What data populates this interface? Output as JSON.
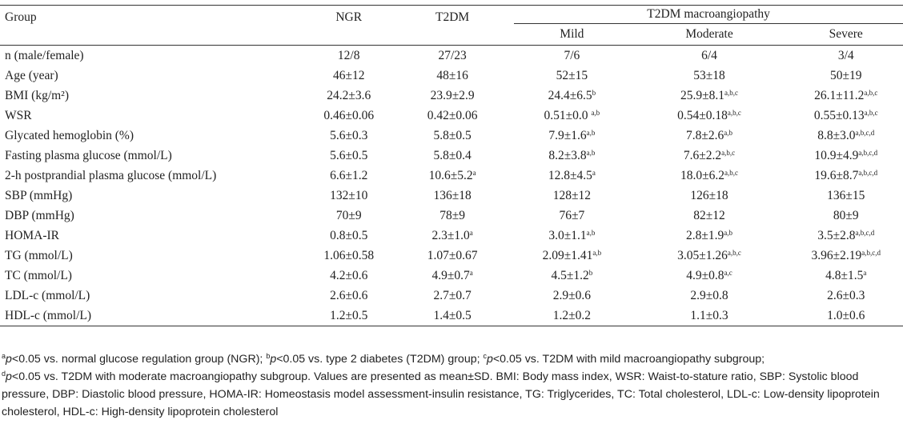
{
  "header": {
    "group": "Group",
    "ngr": "NGR",
    "t2dm": "T2DM",
    "macro": "T2DM macroangiopathy",
    "mild": "Mild",
    "moderate": "Moderate",
    "severe": "Severe"
  },
  "rows": [
    {
      "label": "n (male/female)",
      "cells": [
        [
          "12/8",
          ""
        ],
        [
          "27/23",
          ""
        ],
        [
          "7/6",
          ""
        ],
        [
          "6/4",
          ""
        ],
        [
          "3/4",
          ""
        ]
      ]
    },
    {
      "label": "Age (year)",
      "cells": [
        [
          "46±12",
          ""
        ],
        [
          "48±16",
          ""
        ],
        [
          "52±15",
          ""
        ],
        [
          "53±18",
          ""
        ],
        [
          "50±19",
          ""
        ]
      ]
    },
    {
      "label": "BMI (kg/m²)",
      "cells": [
        [
          "24.2±3.6",
          ""
        ],
        [
          "23.9±2.9",
          ""
        ],
        [
          "24.4±6.5",
          "b"
        ],
        [
          "25.9±8.1",
          "a,b,c"
        ],
        [
          "26.1±11.2",
          "a,b,c"
        ]
      ]
    },
    {
      "label": "WSR",
      "cells": [
        [
          "0.46±0.06",
          ""
        ],
        [
          "0.42±0.06",
          ""
        ],
        [
          "0.51±0.0 ",
          "a,b"
        ],
        [
          "0.54±0.18",
          "a,b,c"
        ],
        [
          "0.55±0.13",
          "a,b,c"
        ]
      ]
    },
    {
      "label": "Glycated hemoglobin (%)",
      "cells": [
        [
          "5.6±0.3",
          ""
        ],
        [
          "5.8±0.5",
          ""
        ],
        [
          "7.9±1.6",
          "a,b"
        ],
        [
          "7.8±2.6",
          "a,b"
        ],
        [
          "8.8±3.0",
          "a,b,c,d"
        ]
      ]
    },
    {
      "label": "Fasting plasma glucose (mmol/L)",
      "cells": [
        [
          "5.6±0.5",
          ""
        ],
        [
          "5.8±0.4",
          ""
        ],
        [
          "8.2±3.8",
          "a,b"
        ],
        [
          "7.6±2.2",
          "a,b,c"
        ],
        [
          "10.9±4.9",
          "a,b,c,d"
        ]
      ]
    },
    {
      "label": "2-h postprandial plasma glucose (mmol/L)",
      "cells": [
        [
          "6.6±1.2",
          ""
        ],
        [
          "10.6±5.2",
          "a"
        ],
        [
          "12.8±4.5",
          "a"
        ],
        [
          "18.0±6.2",
          "a,b,c"
        ],
        [
          "19.6±8.7",
          "a,b,c,d"
        ]
      ]
    },
    {
      "label": "SBP (mmHg)",
      "cells": [
        [
          "132±10",
          ""
        ],
        [
          "136±18",
          ""
        ],
        [
          "128±12",
          ""
        ],
        [
          "126±18",
          ""
        ],
        [
          "136±15",
          ""
        ]
      ]
    },
    {
      "label": "DBP (mmHg)",
      "cells": [
        [
          "70±9",
          ""
        ],
        [
          "78±9",
          ""
        ],
        [
          "76±7",
          ""
        ],
        [
          "82±12",
          ""
        ],
        [
          "80±9",
          ""
        ]
      ]
    },
    {
      "label": "HOMA-IR",
      "cells": [
        [
          "0.8±0.5",
          ""
        ],
        [
          "2.3±1.0",
          "a"
        ],
        [
          "3.0±1.1",
          "a,b"
        ],
        [
          "2.8±1.9",
          "a,b"
        ],
        [
          "3.5±2.8",
          "a,b,c,d"
        ]
      ]
    },
    {
      "label": "TG (mmol/L)",
      "cells": [
        [
          "1.06±0.58",
          ""
        ],
        [
          "1.07±0.67",
          ""
        ],
        [
          "2.09±1.41",
          "a,b"
        ],
        [
          "3.05±1.26",
          "a,b,c"
        ],
        [
          "3.96±2.19",
          "a,b,c,d"
        ]
      ]
    },
    {
      "label": "TC (mmol/L)",
      "cells": [
        [
          "4.2±0.6",
          ""
        ],
        [
          "4.9±0.7",
          "a"
        ],
        [
          "4.5±1.2",
          "b"
        ],
        [
          "4.9±0.8",
          "a,c"
        ],
        [
          "4.8±1.5",
          "a"
        ]
      ]
    },
    {
      "label": "LDL-c (mmol/L)",
      "cells": [
        [
          "2.6±0.6",
          ""
        ],
        [
          "2.7±0.7",
          ""
        ],
        [
          "2.9±0.6",
          ""
        ],
        [
          "2.9±0.8",
          ""
        ],
        [
          "2.6±0.3",
          ""
        ]
      ]
    },
    {
      "label": "HDL-c (mmol/L)",
      "cells": [
        [
          "1.2±0.5",
          ""
        ],
        [
          "1.4±0.5",
          ""
        ],
        [
          "1.2±0.2",
          ""
        ],
        [
          "1.1±0.3",
          ""
        ],
        [
          "1.0±0.6",
          ""
        ]
      ]
    }
  ],
  "notes": {
    "n1_sup": "a",
    "n1_p": "p",
    "n1_text": "<0.05 vs. normal glucose regulation group (NGR); ",
    "n2_sup": "b",
    "n2_p": "p",
    "n2_text": "<0.05 vs. type 2 diabetes (T2DM) group; ",
    "n3_sup": "c",
    "n3_p": "p",
    "n3_text": "<0.05 vs. T2DM with mild macroangiopathy subgroup;",
    "n4_sup": "d",
    "n4_p": "p",
    "n4_text": "<0.05 vs. T2DM with moderate macroangiopathy subgroup. Values are presented as mean±SD. BMI: Body mass index, WSR: Waist-to-stature ratio, SBP: Systolic blood pressure, DBP: Diastolic blood pressure, HOMA-IR: Homeostasis model assessment-insulin resistance, TG: Triglycerides, TC: Total cholesterol, LDL-c: Low-density lipoprotein cholesterol, HDL-c: High-density lipoprotein cholesterol"
  }
}
